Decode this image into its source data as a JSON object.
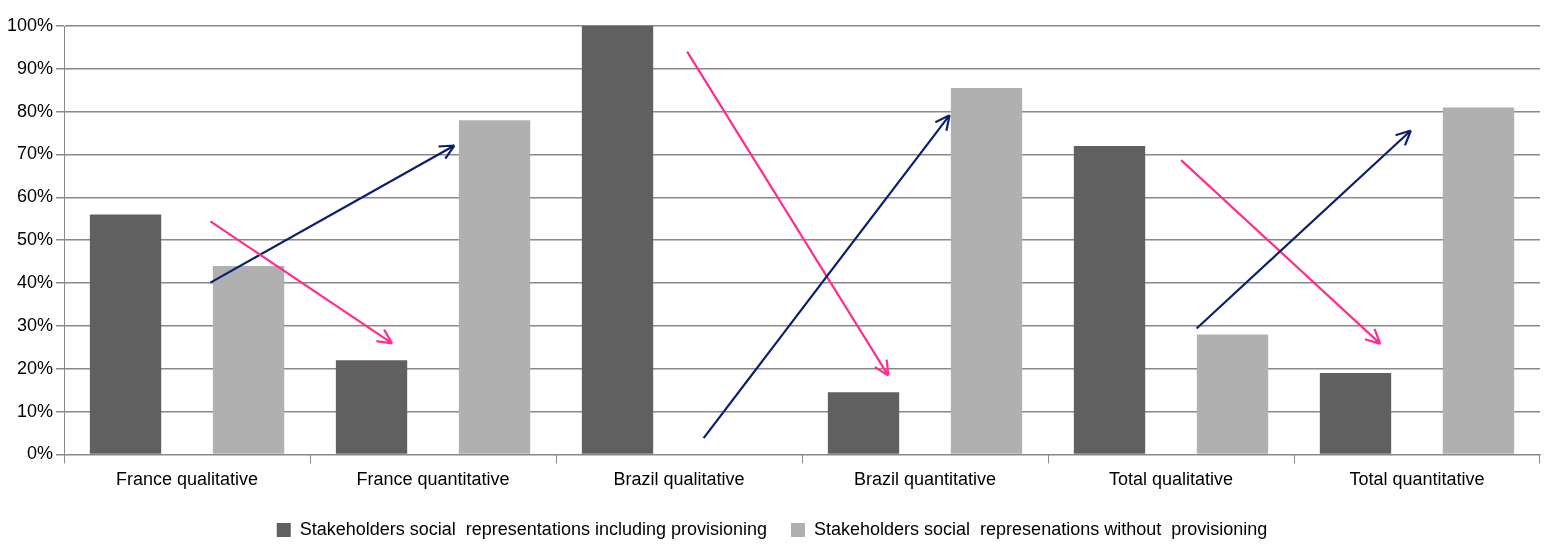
{
  "chart_data": {
    "type": "bar",
    "categories": [
      "France qualitative",
      "France quantitative",
      "Brazil qualitative",
      "Brazil quantitative",
      "Total qualitative",
      "Total quantitative"
    ],
    "series": [
      {
        "name": "Stakeholders social  representations including provisioning",
        "color": "#606060",
        "values": [
          56,
          22,
          100,
          14.5,
          72,
          19
        ]
      },
      {
        "name": "Stakeholders social  represenations without  provisioning",
        "color": "#b0b0b0",
        "values": [
          44,
          78,
          0,
          85.5,
          28,
          81
        ]
      }
    ],
    "ylim": [
      0,
      100
    ],
    "yticks": [
      {
        "value": 0,
        "label": "0%"
      },
      {
        "value": 10,
        "label": "10%"
      },
      {
        "value": 20,
        "label": "20%"
      },
      {
        "value": 30,
        "label": "30%"
      },
      {
        "value": 40,
        "label": "40%"
      },
      {
        "value": 50,
        "label": "50%"
      },
      {
        "value": 60,
        "label": "60%"
      },
      {
        "value": 70,
        "label": "70%"
      },
      {
        "value": 80,
        "label": "80%"
      },
      {
        "value": 90,
        "label": "90%"
      },
      {
        "value": 100,
        "label": "100%"
      }
    ],
    "grid": "y",
    "legend": "bottom"
  }
}
